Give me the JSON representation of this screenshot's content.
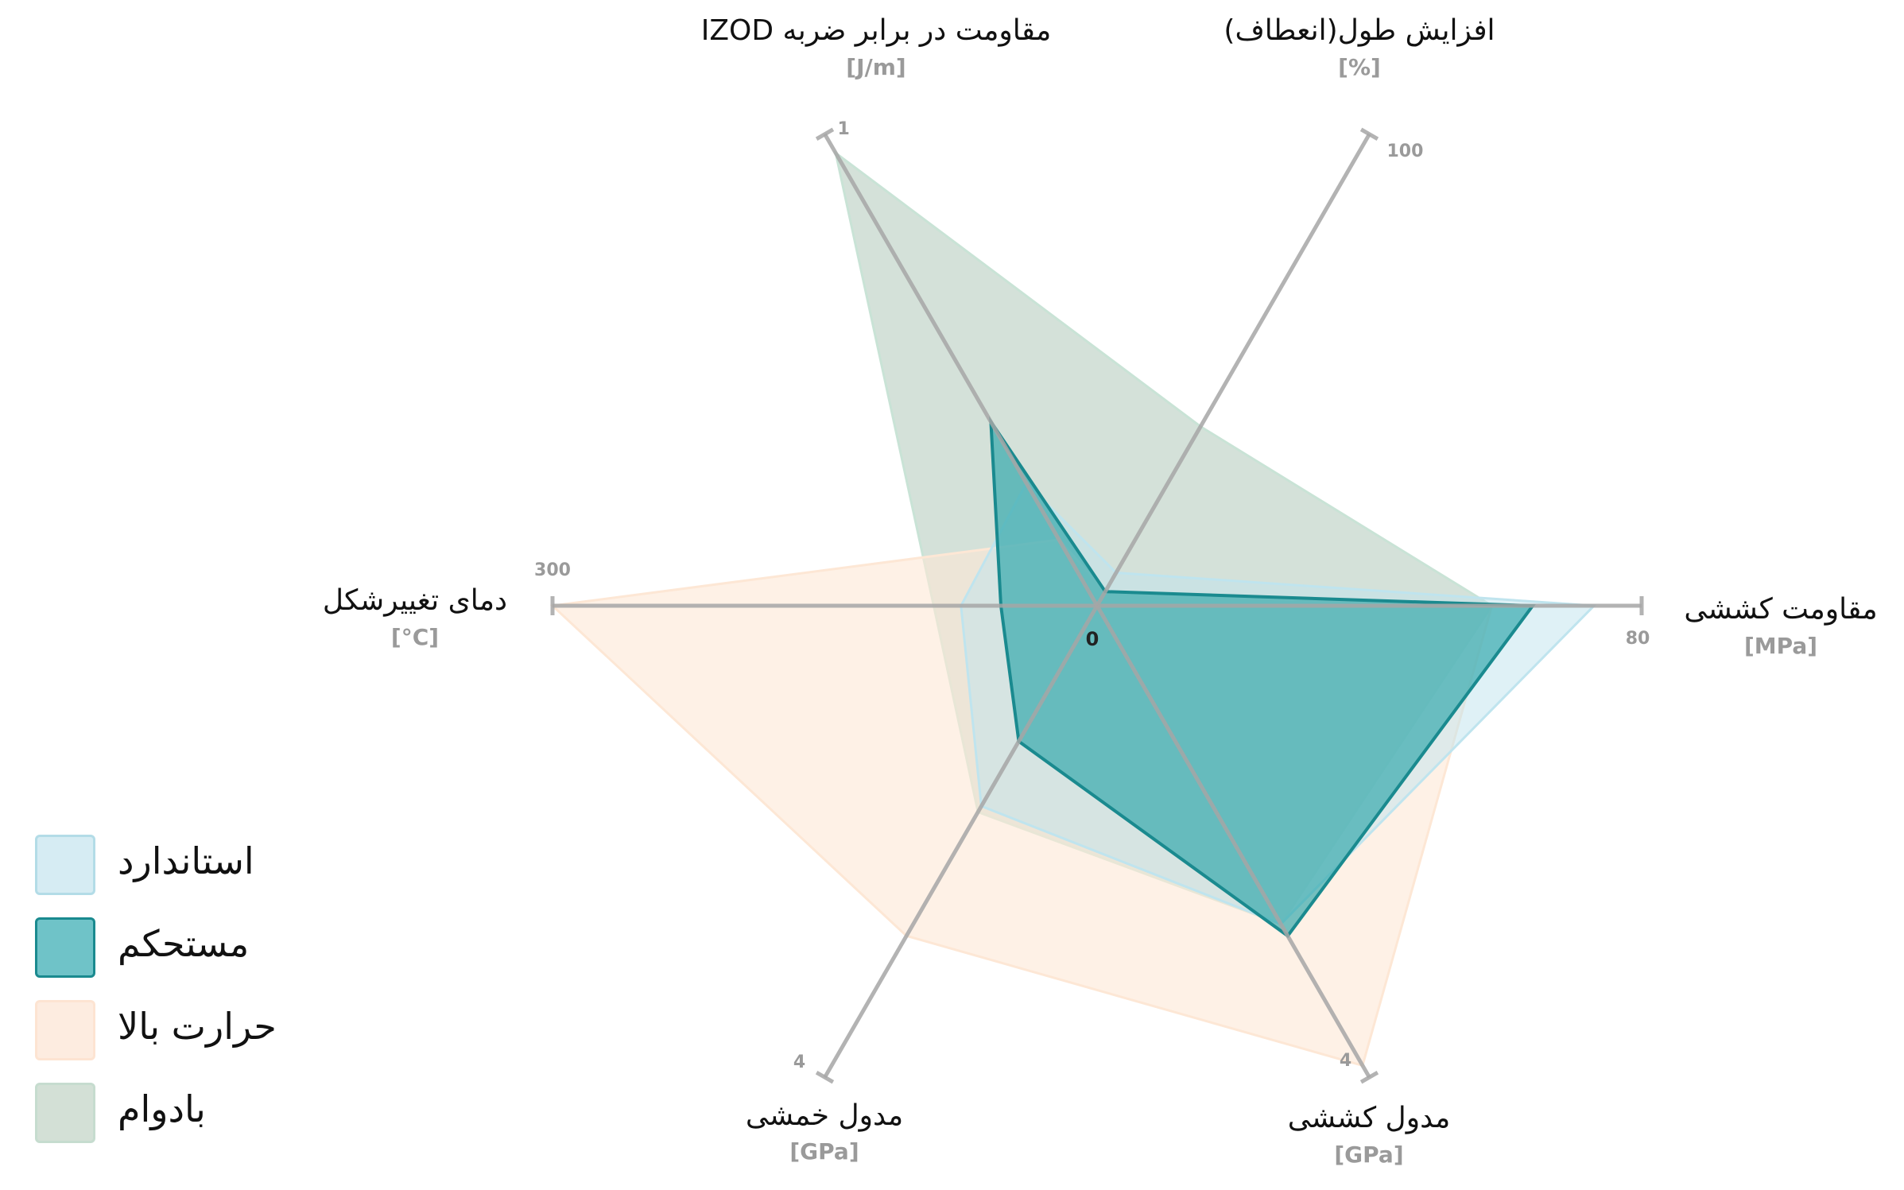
{
  "chart_data": {
    "type": "radar",
    "center_label": "0",
    "axes": [
      {
        "key": "tensile_strength",
        "title": "مقاومت کششی",
        "unit": "[MPa]",
        "max": 80,
        "max_label": "80"
      },
      {
        "key": "elongation",
        "title": "افزایش طول(انعطاف)",
        "unit": "[%]",
        "max": 100,
        "max_label": "100"
      },
      {
        "key": "izod_impact",
        "title": "مقاومت در برابر ضربه IZOD",
        "unit": "[J/m]",
        "max": 1,
        "max_label": "1"
      },
      {
        "key": "hdt",
        "title": "دمای تغییرشکل",
        "unit": "[°C]",
        "max": 300,
        "max_label": "300"
      },
      {
        "key": "flexural_modulus",
        "title": "مدول خمشی",
        "unit": "[GPa]",
        "max": 4,
        "max_label": "4"
      },
      {
        "key": "tensile_modulus",
        "title": "مدول کششی",
        "unit": "[GPa]",
        "max": 4,
        "max_label": "4"
      }
    ],
    "series": [
      {
        "name": "بادوام",
        "fill": "#c9d9cf",
        "stroke": "#c9e3d6",
        "fill_opacity": 0.8,
        "stroke_width": 3,
        "values": [
          58,
          38,
          0.96,
          90,
          1.75,
          2.7
        ]
      },
      {
        "name": "حرارت بالا",
        "fill": "#fde7d5",
        "stroke": "#fde7d5",
        "fill_opacity": 0.6,
        "stroke_width": 3,
        "values": [
          58,
          3,
          0.14,
          300,
          2.8,
          3.9
        ]
      },
      {
        "name": "استاندارد",
        "fill": "#bfe4ee",
        "stroke": "#bfe4ee",
        "fill_opacity": 0.5,
        "stroke_width": 3,
        "values": [
          73,
          7,
          0.26,
          75,
          1.7,
          2.7
        ]
      },
      {
        "name": "مستحکم",
        "fill": "#2aa5a9",
        "stroke": "#1a8a8f",
        "fill_opacity": 0.65,
        "stroke_width": 4,
        "values": [
          64,
          3,
          0.39,
          53,
          1.15,
          2.8
        ]
      }
    ]
  },
  "legend": [
    {
      "label": "استاندارد",
      "fill": "#d6ecf3",
      "border": "#b3dce7"
    },
    {
      "label": "مستحکم",
      "fill": "#6fc3c8",
      "border": "#1a8a8f"
    },
    {
      "label": "حرارت بالا",
      "fill": "#fdece0",
      "border": "#fde4d2"
    },
    {
      "label": "بادوام",
      "fill": "#d3e0d6",
      "border": "#c6dccf"
    }
  ]
}
